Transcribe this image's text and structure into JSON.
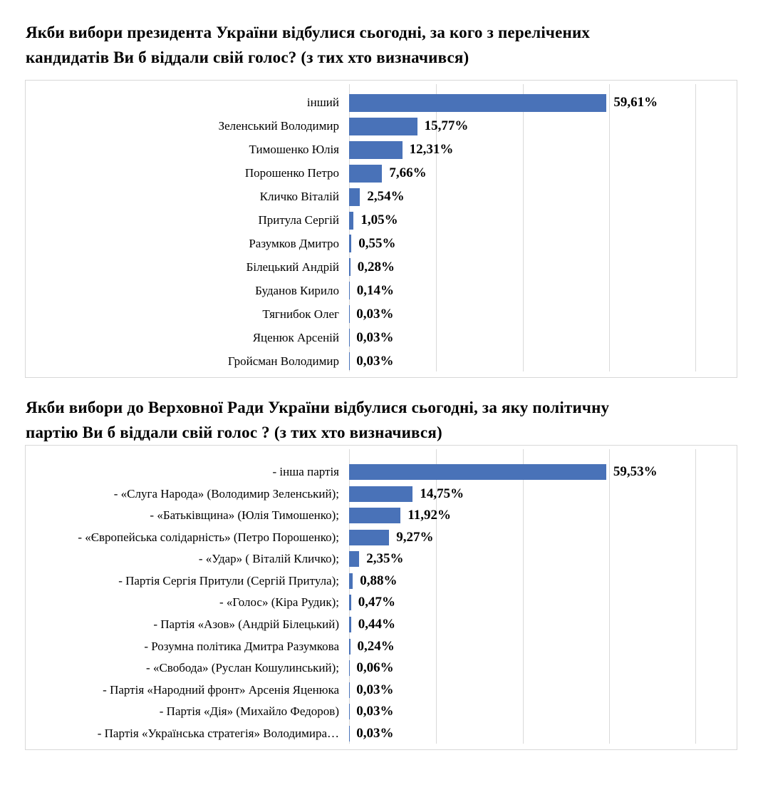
{
  "chart_data": [
    {
      "type": "bar",
      "orientation": "horizontal",
      "title": "Якби вибори президента України відбулися сьогодні, за кого з перелічених кандидатів Ви б віддали свій голос? (з тих хто визначився)",
      "title_lines": [
        "Якби вибори президента України відбулися сьогодні, за кого з перелічених",
        "кандидатів Ви б віддали свій голос? (з тих хто визначився)"
      ],
      "categories": [
        "інший",
        "Зеленський Володимир",
        "Тимошенко Юлія",
        "Порошенко Петро",
        "Кличко Віталій",
        "Притула Сергій",
        "Разумков Дмитро",
        "Білецький Андрій",
        "Буданов Кирило",
        "Тягнибок Олег",
        "Яценюк Арсеній",
        "Гройсман Володимир"
      ],
      "values": [
        59.61,
        15.77,
        12.31,
        7.66,
        2.54,
        1.05,
        0.55,
        0.28,
        0.14,
        0.03,
        0.03,
        0.03
      ],
      "value_labels": [
        "59,61%",
        "15,77%",
        "12,31%",
        "7,66%",
        "2,54%",
        "1,05%",
        "0,55%",
        "0,28%",
        "0,14%",
        "0,03%",
        "0,03%",
        "0,03%"
      ],
      "xlim": [
        0,
        80
      ],
      "gridline_values": [
        20,
        40,
        60,
        80
      ],
      "bar_color": "#4972b8",
      "grid_color": "#d9d9d9",
      "legend": "none"
    },
    {
      "type": "bar",
      "orientation": "horizontal",
      "title": "Якби вибори до Верховної Ради України відбулися сьогодні, за яку політичну партію Ви б віддали свій голос ? (з тих хто визначився)",
      "title_lines": [
        "Якби вибори до Верховної Ради України відбулися сьогодні, за яку політичну",
        "партію Ви б віддали свій голос ? (з тих хто визначився)"
      ],
      "categories": [
        "- інша партія",
        "- «Слуга Народа» (Володимир Зеленський);",
        "- «Батьківщина» (Юлія Тимошенко);",
        "- «Європейська солідарність» (Петро Порошенко);",
        "- «Удар» ( Віталій Кличко);",
        "- Партія Сергія Притули (Сергій Притула);",
        "- «Голос» (Кіра Рудик);",
        "- Партія «Азов» (Андрій Білецький)",
        "- Розумна політика Дмитра Разумкова",
        "- «Свобода» (Руслан Кошулинський);",
        "- Партія «Народний фронт» Арсенія Яценюка",
        "- Партія «Дія» (Михайло Федоров)",
        "- Партія «Українська стратегія» Володимира…"
      ],
      "values": [
        59.53,
        14.75,
        11.92,
        9.27,
        2.35,
        0.88,
        0.47,
        0.44,
        0.24,
        0.06,
        0.03,
        0.03,
        0.03
      ],
      "value_labels": [
        "59,53%",
        "14,75%",
        "11,92%",
        "9,27%",
        "2,35%",
        "0,88%",
        "0,47%",
        "0,44%",
        "0,24%",
        "0,06%",
        "0,03%",
        "0,03%",
        "0,03%"
      ],
      "xlim": [
        0,
        80
      ],
      "gridline_values": [
        20,
        40,
        60,
        80
      ],
      "bar_color": "#4972b8",
      "grid_color": "#d9d9d9",
      "legend": "none"
    }
  ]
}
